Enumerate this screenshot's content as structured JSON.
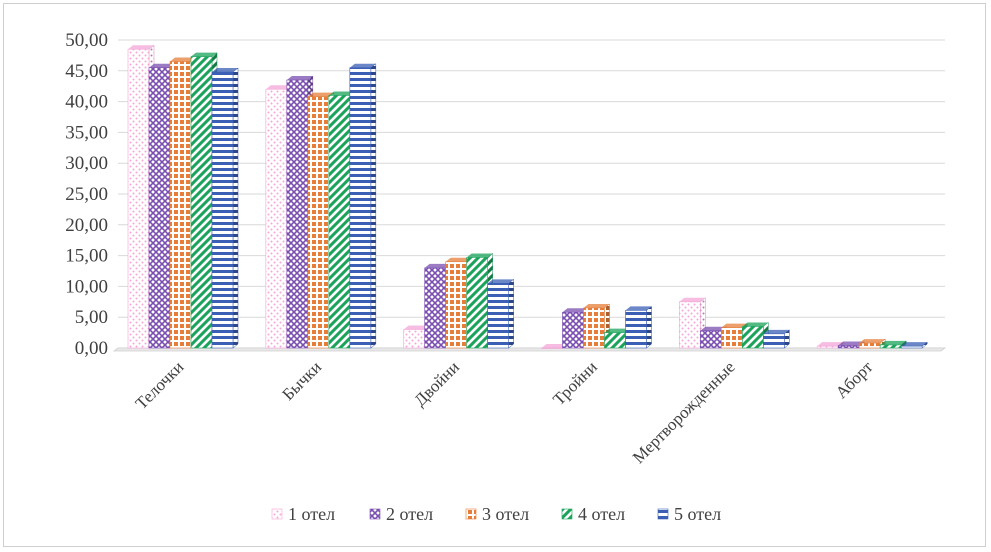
{
  "chart_data": {
    "type": "bar",
    "title": "",
    "xlabel": "",
    "ylabel": "",
    "ylim": [
      0,
      50
    ],
    "y_tick_step": 5,
    "y_tick_labels": [
      "0,00",
      "5,00",
      "10,00",
      "15,00",
      "20,00",
      "25,00",
      "30,00",
      "35,00",
      "40,00",
      "45,00",
      "50,00"
    ],
    "grid": true,
    "legend_position": "bottom",
    "categories": [
      "Телочки",
      "Бычки",
      "Двойни",
      "Тройни",
      "Мертворожденные",
      "Аборт"
    ],
    "series": [
      {
        "name": "1 отел",
        "color": "#f4a6d8",
        "pattern": "dots",
        "values": [
          48.5,
          42.0,
          3.0,
          0.0,
          7.5,
          0.3
        ]
      },
      {
        "name": "2 отел",
        "color": "#7a4fb0",
        "pattern": "lattice",
        "values": [
          45.5,
          43.5,
          13.0,
          5.8,
          2.8,
          0.4
        ]
      },
      {
        "name": "3 отел",
        "color": "#e67e3a",
        "pattern": "grid",
        "values": [
          46.5,
          40.8,
          14.0,
          6.5,
          3.3,
          0.8
        ]
      },
      {
        "name": "4 отел",
        "color": "#1ba35b",
        "pattern": "diagonal",
        "values": [
          47.3,
          41.0,
          14.7,
          2.5,
          3.5,
          0.5
        ]
      },
      {
        "name": "5 отел",
        "color": "#3b5fb5",
        "pattern": "hstripe",
        "values": [
          44.8,
          45.5,
          10.5,
          6.1,
          2.3,
          0.3
        ]
      }
    ]
  }
}
